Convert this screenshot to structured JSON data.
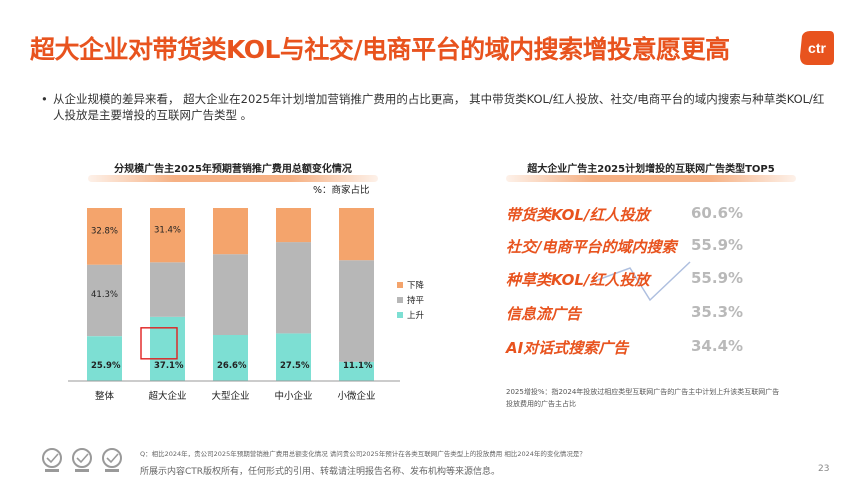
{
  "title": "超大企业对带货类KOL与社交/电商平台的域内搜索增投意愿更高",
  "bullet": "从企业规模的差异来看， 超大企业在2025年计划增加营销推广费用的占比更高， 其中带货类KOL/红人投放、社交/电商平台的域内搜索与种草类KOL/红人投放是主要增投的互联网广告类型 。",
  "left_panel": {
    "heading": "分规模广告主2025年预期营销推广费用总额变化情况",
    "unit": "%：商家占比"
  },
  "right_panel": {
    "heading": "超大企业广告主2025计划增投的互联网广告类型TOP5"
  },
  "chart_data": [
    {
      "type": "bar",
      "stacked": true,
      "categories": [
        "整体",
        "超大企业",
        "大型企业",
        "中小企业",
        "小微企业"
      ],
      "series": [
        {
          "name": "上升",
          "values": [
            25.9,
            37.1,
            26.6,
            27.5,
            11.1
          ],
          "color": "#7ddfd3"
        },
        {
          "name": "持平",
          "values": [
            41.3,
            31.5,
            46.7,
            52.8,
            58.7
          ],
          "color": "#b7b7b7"
        },
        {
          "name": "下降",
          "values": [
            32.8,
            31.4,
            26.7,
            19.7,
            30.2
          ],
          "color": "#f4a46c"
        }
      ],
      "data_labels": [
        [
          "25.9%",
          "37.1%",
          "26.6%",
          "27.5%",
          "11.1%"
        ],
        [
          "41.3%",
          "",
          "",
          "",
          ""
        ],
        [
          "32.8%",
          "31.4%",
          "",
          "",
          ""
        ]
      ],
      "highlight": "超大企业",
      "ylim": [
        0,
        100
      ],
      "legend_position": "right",
      "legend": [
        "下降",
        "持平",
        "上升"
      ]
    },
    {
      "type": "table",
      "rows": [
        {
          "label": "带货类KOL/红人投放",
          "value": "60.6%"
        },
        {
          "label": "社交/电商平台的域内搜索",
          "value": "55.9%"
        },
        {
          "label": "种草类KOL/红人投放",
          "value": "55.9%"
        },
        {
          "label": "信息流广告",
          "value": "35.3%"
        },
        {
          "label": "AI对话式搜索广告",
          "value": "34.4%"
        }
      ]
    }
  ],
  "footnote_right": "2025增投%：指2024年投放过相应类型互联网广告的广告主中计划上升该类互联网广告投放费用的广告主占比",
  "question_note": "Q：相比2024年，贵公司2025年预期营销推广费用总额变化情况  请问贵公司2025年预计在各类互联网广告类型上的投放费用 相比2024年的变化情况是？",
  "copyright": "所展示内容CTR版权所有，任何形式的引用、转载请注明报告名称、发布机构等来源信息。",
  "page_number": "23",
  "logo_text": "ctr",
  "colors": {
    "accent": "#e8531e",
    "rise": "#7ddfd3",
    "flat": "#b7b7b7",
    "fall": "#f4a46c"
  }
}
